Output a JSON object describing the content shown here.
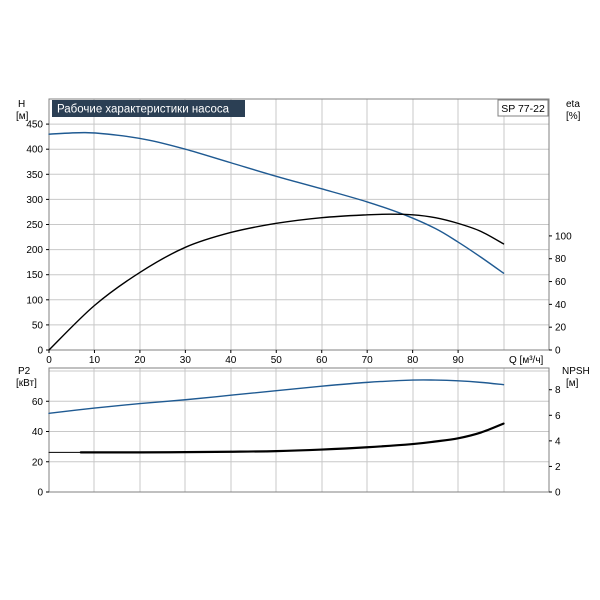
{
  "chart_data": [
    {
      "type": "line",
      "title": "Рабочие характеристики насоса",
      "model_label": "SP 77-22",
      "x_label": "Q [м³/ч]",
      "y_left_label": [
        "H",
        "[м]"
      ],
      "y_right_label": [
        "eta",
        "[%]"
      ],
      "x_ticks": [
        0,
        10,
        20,
        30,
        40,
        50,
        60,
        70,
        80,
        90
      ],
      "xlim": [
        0,
        110
      ],
      "y_left_ticks": [
        0,
        50,
        100,
        150,
        200,
        250,
        300,
        350,
        400,
        450
      ],
      "ylim_left": [
        0,
        500
      ],
      "y_right_ticks": [
        0,
        20,
        40,
        60,
        80,
        100
      ],
      "ylim_right": [
        0,
        220
      ],
      "grid": true,
      "series": [
        {
          "axis": "left",
          "color": "#1f5a92",
          "x": [
            0,
            8,
            15,
            22,
            30,
            40,
            50,
            60,
            70,
            78,
            85,
            90,
            95,
            100
          ],
          "y": [
            430,
            433,
            428,
            418,
            400,
            373,
            346,
            321,
            295,
            270,
            242,
            215,
            185,
            153
          ]
        },
        {
          "axis": "right",
          "color": "#000000",
          "x": [
            0,
            10,
            20,
            30,
            40,
            50,
            60,
            70,
            75,
            80,
            85,
            90,
            95,
            100
          ],
          "y": [
            0,
            39,
            68,
            90,
            103,
            111,
            116,
            118.5,
            119,
            118.5,
            116,
            111,
            104,
            93
          ]
        }
      ]
    },
    {
      "type": "line",
      "y_left_label": [
        "P2",
        "[кВт]"
      ],
      "y_right_label": [
        "NPSH",
        "[м]"
      ],
      "xlim": [
        0,
        110
      ],
      "y_left_ticks": [
        0,
        20,
        40,
        60
      ],
      "ylim_left": [
        0,
        82
      ],
      "y_right_ticks": [
        0,
        2,
        4,
        6,
        8
      ],
      "ylim_right": [
        0,
        9.7
      ],
      "grid": true,
      "series": [
        {
          "axis": "left",
          "color": "#1f5a92",
          "x": [
            0,
            10,
            20,
            30,
            40,
            50,
            60,
            70,
            80,
            85,
            90,
            95,
            100
          ],
          "y": [
            52,
            55.5,
            58.5,
            61,
            64,
            67,
            70,
            72.5,
            74,
            74,
            73.5,
            72.5,
            71
          ]
        },
        {
          "axis": "right",
          "color": "#000000",
          "width": 2.2,
          "x": [
            7,
            20,
            30,
            40,
            50,
            60,
            70,
            80,
            85,
            90,
            95,
            100
          ],
          "y": [
            3.1,
            3.1,
            3.12,
            3.15,
            3.2,
            3.32,
            3.5,
            3.75,
            3.95,
            4.2,
            4.65,
            5.35
          ]
        },
        {
          "axis": "right",
          "color": "#000000",
          "width": 1,
          "x": [
            0,
            7
          ],
          "y": [
            3.1,
            3.1
          ]
        }
      ]
    }
  ]
}
